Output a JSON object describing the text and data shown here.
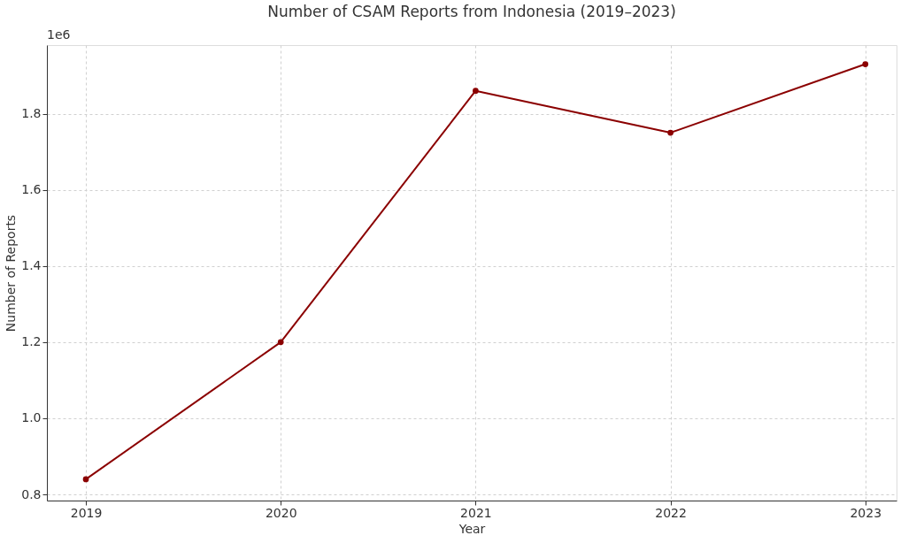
{
  "chart_data": {
    "type": "line",
    "title": "Number of CSAM Reports from Indonesia (2019–2023)",
    "xlabel": "Year",
    "ylabel": "Number of Reports",
    "x": [
      2019,
      2020,
      2021,
      2022,
      2023
    ],
    "series": [
      {
        "color": "#8b0000",
        "values": [
          0.84,
          1.2,
          1.86,
          1.75,
          1.93
        ]
      }
    ],
    "xlim": [
      2018.8,
      2023.16
    ],
    "xticks": [
      2019,
      2020,
      2021,
      2022,
      2023
    ],
    "ylim": [
      0.784,
      1.98
    ],
    "yticks": [
      {
        "value": 0.8,
        "label": "0.8"
      },
      {
        "value": 1.0,
        "label": "1.0"
      },
      {
        "value": 1.2,
        "label": "1.2"
      },
      {
        "value": 1.4,
        "label": "1.4"
      },
      {
        "value": 1.6,
        "label": "1.6"
      },
      {
        "value": 1.8,
        "label": "1.8"
      }
    ],
    "annotations": [
      "1e6"
    ],
    "grid": true,
    "marker": "circle",
    "line_style": "solid"
  }
}
